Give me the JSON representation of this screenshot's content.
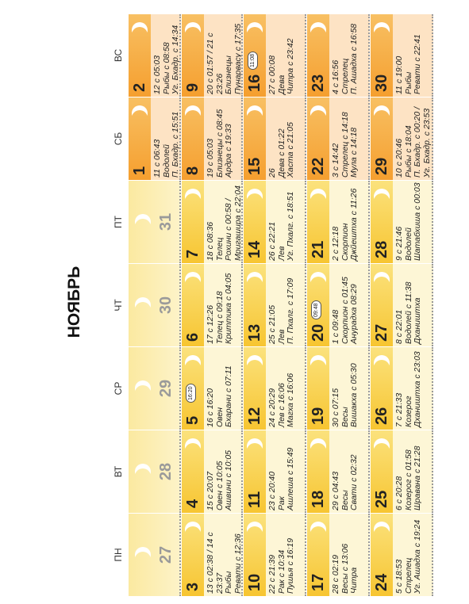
{
  "title": "НОЯБРЬ",
  "weekdays": [
    "ПН",
    "ВТ",
    "СР",
    "ЧТ",
    "ПТ",
    "СБ",
    "ВС"
  ],
  "weeks": [
    {
      "days": [
        {
          "day": 27
        },
        {
          "day": 28
        },
        {
          "day": 29
        },
        {
          "day": 30
        },
        {
          "day": 31
        },
        {
          "day": 1,
          "lines": [
            "11 с 06:43",
            "Водолей",
            "П. Бхадр. с 15:51"
          ]
        },
        {
          "day": 2,
          "lines": [
            "12 с 05:03",
            "Рыбы с 08:58",
            "Уг. Бхадр. с 14:34"
          ]
        }
      ]
    },
    {
      "days": [
        {
          "day": 3,
          "lines": [
            "13 с 02:38 / 14 с",
            "23:37",
            "Рыбы",
            "Ревати с 12:36"
          ]
        },
        {
          "day": 4,
          "lines": [
            "15 с 20:07",
            "Овен с 10:05",
            "Ашвини с 10:05"
          ]
        },
        {
          "day": 5,
          "badge": "16:20",
          "lines": [
            "16 с 16:20",
            "Овен",
            "Бхарани с 07:11"
          ]
        },
        {
          "day": 6,
          "lines": [
            "17 с 12:26",
            "Телец с 09:18",
            "Криттика с 04:05"
          ]
        },
        {
          "day": 7,
          "lines": [
            "18 с 08:36",
            "Телец",
            "Рохини с 00:58 /",
            "Мригашира с 22:04"
          ]
        },
        {
          "day": 8,
          "lines": [
            "19 с 05:03",
            "Близнецы с 08:45",
            "Ардра с 19:33"
          ]
        },
        {
          "day": 9,
          "lines": [
            "20 с 01:57 / 21 с",
            "23:26",
            "Близнецы",
            "Пунарвасу с 17:35"
          ]
        }
      ]
    },
    {
      "days": [
        {
          "day": 10,
          "lines": [
            "22 с 21:39",
            "Рак с 10:34",
            "Пушья с 16:19"
          ]
        },
        {
          "day": 11,
          "lines": [
            "23 с 20:40",
            "Рак",
            "Ашлеша с 15:49"
          ]
        },
        {
          "day": 12,
          "lines": [
            "24 с 20:29",
            "Лев с 16:06",
            "Магха с 16:06"
          ]
        },
        {
          "day": 13,
          "lines": [
            "25 с 21:05",
            "Лев",
            "П. Пхалг. с 17:09"
          ]
        },
        {
          "day": 14,
          "lines": [
            "26 с 22:21",
            "Лев",
            "Уг. Пхалг. с 18:51"
          ]
        },
        {
          "day": 15,
          "lines": [
            "26",
            "Дева с 01:22",
            "Хаста с 21:05"
          ]
        },
        {
          "day": 16,
          "badge": "11:08",
          "lines": [
            "27 с 00:08",
            "Дева",
            "Читра с 23:42"
          ]
        }
      ]
    },
    {
      "days": [
        {
          "day": 17,
          "lines": [
            "28 с 02:19",
            "Весы с 13:06",
            "Читра"
          ]
        },
        {
          "day": 18,
          "lines": [
            "29 с 04:43",
            "Весы",
            "Свати с 02:32"
          ]
        },
        {
          "day": 19,
          "lines": [
            "30 с 07:15",
            "Весы",
            "Вишакха с 05:30"
          ]
        },
        {
          "day": 20,
          "badge": "09:48",
          "lines": [
            "1 с 09:48",
            "Скорпион с 01:45",
            "Анурадха 08:29"
          ]
        },
        {
          "day": 21,
          "lines": [
            "2 с 12:18",
            "Скорпион",
            "Джйештха с 11:26"
          ]
        },
        {
          "day": 22,
          "lines": [
            "3 с 14:42",
            "Стрелец с 14:18",
            "Мула с 14:18"
          ]
        },
        {
          "day": 23,
          "lines": [
            "4 с 16:56",
            "Стрелец",
            "П. Ашадха с 16:58"
          ]
        }
      ]
    },
    {
      "days": [
        {
          "day": 24,
          "lines": [
            "5 с 18:53",
            "Стрелец",
            "Уг. Ашадха с 19:24"
          ]
        },
        {
          "day": 25,
          "lines": [
            "6 с 20:28",
            "Козерог с 01:58",
            "Шравана с 21:28"
          ]
        },
        {
          "day": 26,
          "lines": [
            "7 с 21:33",
            "Козерог",
            "Дхаништха с 23:03"
          ]
        },
        {
          "day": 27,
          "lines": [
            "8 с 22:01",
            "Водолей с 11:38",
            "Дхаништха"
          ]
        },
        {
          "day": 28,
          "lines": [
            "9 с 21:46",
            "Водолей",
            "Шатабхиша с 00:03"
          ]
        },
        {
          "day": 29,
          "lines": [
            "10 с 20:46",
            "Рыбы с 18:04",
            "П. Бхадр. с 00:20 /",
            "Уг. Бхадр. с 23:53"
          ]
        },
        {
          "day": 30,
          "lines": [
            "11 с 19:00",
            "Рыбы",
            "Ревати с 22:41"
          ]
        }
      ]
    }
  ]
}
